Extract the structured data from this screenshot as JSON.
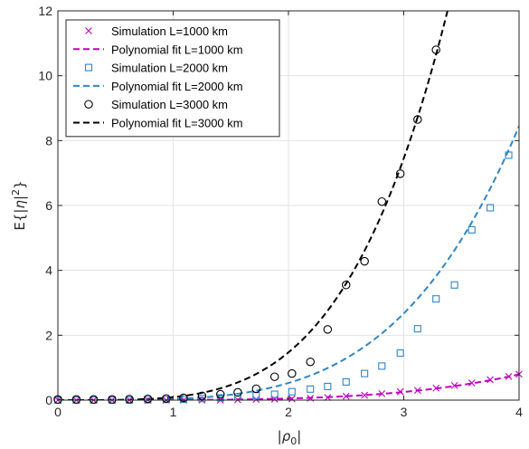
{
  "chart_data": {
    "type": "line",
    "xlabel": "|ρ0|",
    "ylabel": "E{|η|2}",
    "xlim": [
      0,
      4
    ],
    "ylim": [
      0,
      12
    ],
    "xticks": [
      "0",
      "1",
      "2",
      "3",
      "4"
    ],
    "yticks": [
      "0",
      "2",
      "4",
      "6",
      "8",
      "10",
      "12"
    ],
    "grid": true,
    "legend_position": "top-left",
    "series": [
      {
        "name": "Simulation  L=1000 km",
        "kind": "markers",
        "marker": "x",
        "color": "#c000c0",
        "x": [
          0,
          0.16,
          0.31,
          0.47,
          0.62,
          0.78,
          0.94,
          1.09,
          1.25,
          1.41,
          1.56,
          1.72,
          1.88,
          2.03,
          2.19,
          2.34,
          2.5,
          2.66,
          2.81,
          2.97,
          3.12,
          3.28,
          3.44,
          3.59,
          3.75,
          3.91,
          4.0
        ],
        "y": [
          0,
          0,
          0,
          0,
          0,
          0,
          0,
          0,
          0,
          0,
          0.01,
          0.02,
          0.03,
          0.04,
          0.06,
          0.08,
          0.12,
          0.15,
          0.2,
          0.26,
          0.3,
          0.37,
          0.45,
          0.53,
          0.63,
          0.73,
          0.8
        ]
      },
      {
        "name": "Polynomial fit L=1000 km",
        "kind": "fit",
        "color": "#c000c0",
        "coef": 0.0031,
        "power": 4
      },
      {
        "name": "Simulation  L=2000 km",
        "kind": "markers",
        "marker": "square",
        "color": "#2f86c8",
        "x": [
          0,
          0.16,
          0.31,
          0.47,
          0.62,
          0.78,
          0.94,
          1.09,
          1.25,
          1.41,
          1.56,
          1.72,
          1.88,
          2.03,
          2.19,
          2.34,
          2.5,
          2.66,
          2.81,
          2.97,
          3.12,
          3.28,
          3.44,
          3.59,
          3.75,
          3.91
        ],
        "y": [
          0,
          0,
          0,
          0,
          0,
          0.01,
          0.02,
          0.03,
          0.05,
          0.07,
          0.1,
          0.14,
          0.18,
          0.26,
          0.34,
          0.42,
          0.56,
          0.82,
          1.05,
          1.45,
          2.2,
          3.12,
          3.55,
          5.25,
          5.93,
          7.55
        ]
      },
      {
        "name": "Polynomial fit L=2000 km",
        "kind": "fit",
        "color": "#2f86c8",
        "coef": 0.033,
        "power": 4
      },
      {
        "name": "Simulation  L=3000 km",
        "kind": "markers",
        "marker": "circle",
        "color": "#000000",
        "x": [
          0,
          0.16,
          0.31,
          0.47,
          0.62,
          0.78,
          0.94,
          1.09,
          1.25,
          1.41,
          1.56,
          1.72,
          1.88,
          2.03,
          2.19,
          2.34,
          2.5,
          2.66,
          2.81,
          2.97,
          3.12,
          3.28
        ],
        "y": [
          0.02,
          0.02,
          0.02,
          0.02,
          0.03,
          0.04,
          0.05,
          0.07,
          0.13,
          0.18,
          0.24,
          0.35,
          0.72,
          0.82,
          1.18,
          2.18,
          3.55,
          4.28,
          6.12,
          6.98,
          8.65,
          10.8
        ]
      },
      {
        "name": "Polynomial fit L=3000 km",
        "kind": "fit",
        "color": "#000000",
        "coef": 0.092,
        "power": 4
      }
    ]
  }
}
